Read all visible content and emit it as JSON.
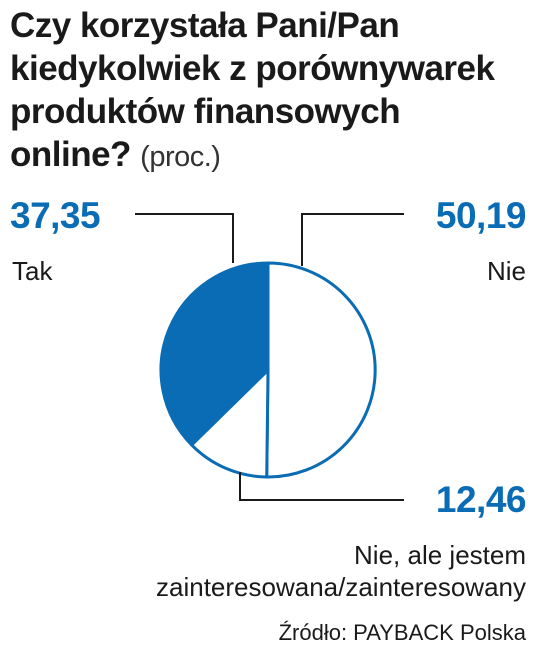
{
  "title": "Czy korzystała Pani/Pan kiedykolwiek z porównywarek produktów finansowych online?",
  "unit": "(proc.)",
  "source": "Źródło: PAYBACK Polska",
  "colors": {
    "accent": "#0a6cb4",
    "text": "#1a1a1a",
    "background": "#ffffff"
  },
  "chart_data": {
    "type": "pie",
    "title": "Czy korzystała Pani/Pan kiedykolwiek z porównywarek produktów finansowych online?",
    "unit": "(proc.)",
    "slices": [
      {
        "label": "Nie",
        "value": 50.19,
        "display": "50,19",
        "fill": "#ffffff"
      },
      {
        "label": "Nie, ale jestem zainteresowana/zainteresowany",
        "value": 12.46,
        "display": "12,46",
        "fill": "#ffffff"
      },
      {
        "label": "Tak",
        "value": 37.35,
        "display": "37,35",
        "fill": "#0a6cb4"
      }
    ]
  },
  "labels": {
    "tak": {
      "value": "37,35",
      "text": "Tak"
    },
    "nie": {
      "value": "50,19",
      "text": "Nie"
    },
    "zainteresowani": {
      "value": "12,46",
      "line1": "Nie, ale jestem",
      "line2": "zainteresowana/zainteresowany"
    }
  }
}
